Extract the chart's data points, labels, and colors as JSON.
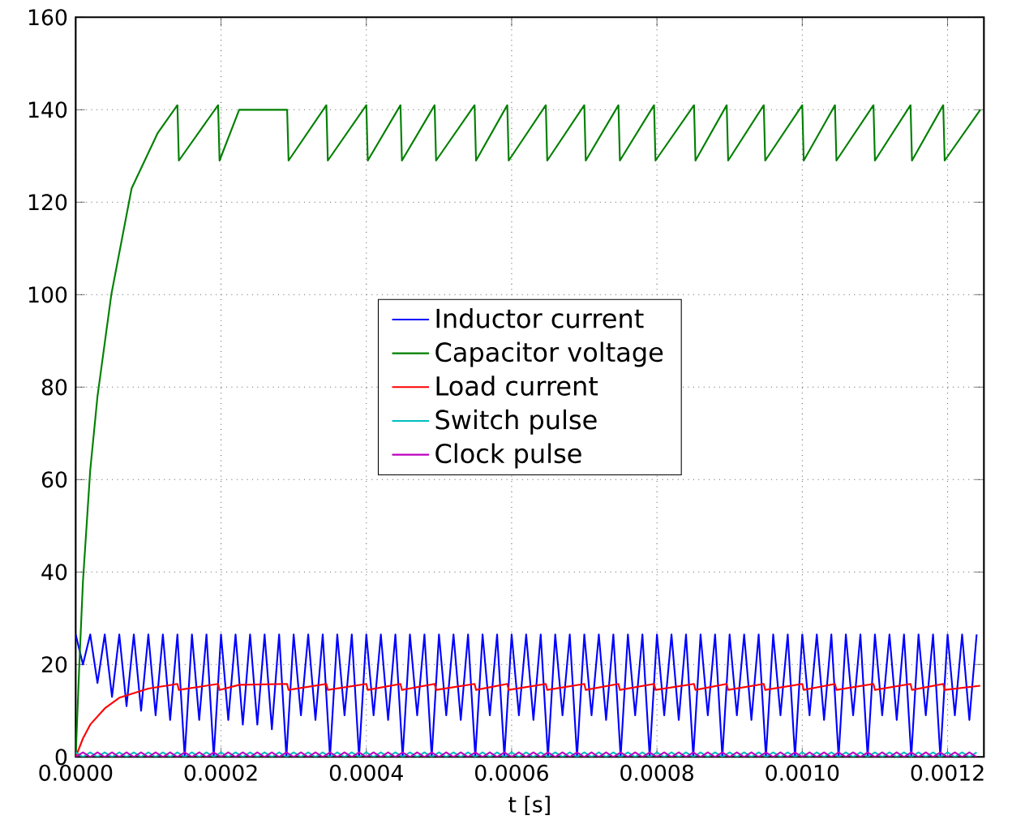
{
  "chart_data": {
    "type": "line",
    "xlabel": "t [s]",
    "xlim": [
      0,
      0.00125
    ],
    "ylim": [
      0,
      160
    ],
    "xticks": [
      {
        "value": 0,
        "label": "0.0000"
      },
      {
        "value": 0.0002,
        "label": "0.0002"
      },
      {
        "value": 0.0004,
        "label": "0.0004"
      },
      {
        "value": 0.0006,
        "label": "0.0006"
      },
      {
        "value": 0.0008,
        "label": "0.0008"
      },
      {
        "value": 0.001,
        "label": "0.0010"
      },
      {
        "value": 0.0012,
        "label": "0.0012"
      }
    ],
    "yticks": [
      0,
      20,
      40,
      60,
      80,
      100,
      120,
      140,
      160
    ],
    "grid": true,
    "legend": "center",
    "marker": "none",
    "line_style": "solid",
    "x": [
      0,
      1e-05,
      2e-05,
      3e-05,
      4e-05,
      5e-05,
      6e-05,
      7e-05,
      8e-05,
      9e-05,
      0.0001,
      0.00011,
      0.00012,
      0.00013,
      0.00014,
      0.00015,
      0.00016,
      0.00017,
      0.00018,
      0.00019,
      0.0002,
      0.00021,
      0.00022,
      0.00023,
      0.00024,
      0.00025,
      0.00026,
      0.00027,
      0.00028,
      0.00029,
      0.0003,
      0.00031,
      0.00032,
      0.00033,
      0.00034,
      0.00035,
      0.00036,
      0.00037,
      0.00038,
      0.00039,
      0.0004,
      0.00041,
      0.00042,
      0.00043,
      0.00044,
      0.00045,
      0.00046,
      0.00047,
      0.00048,
      0.00049,
      0.0005,
      0.00051,
      0.00052,
      0.00053,
      0.00054,
      0.00055,
      0.00056,
      0.00057,
      0.00058,
      0.00059,
      0.0006,
      0.00061,
      0.00062,
      0.00063,
      0.00064,
      0.00065,
      0.00066,
      0.00067,
      0.00068,
      0.00069,
      0.0007,
      0.00071,
      0.00072,
      0.00073,
      0.00074,
      0.00075,
      0.00076,
      0.00077,
      0.00078,
      0.00079,
      0.0008,
      0.00081,
      0.00082,
      0.00083,
      0.00084,
      0.00085,
      0.00086,
      0.00087,
      0.00088,
      0.00089,
      0.0009,
      0.00091,
      0.00092,
      0.00093,
      0.00094,
      0.00095,
      0.00096,
      0.00097,
      0.00098,
      0.00099,
      0.001,
      0.00101,
      0.00102,
      0.00103,
      0.00104,
      0.00105,
      0.00106,
      0.00107,
      0.00108,
      0.00109,
      0.0011,
      0.00111,
      0.00112,
      0.00113,
      0.00114,
      0.00115,
      0.00116,
      0.00117,
      0.00118,
      0.00119,
      0.0012,
      0.00121,
      0.00122,
      0.00123,
      0.00124
    ],
    "series": [
      {
        "name": "Inductor current",
        "color": "#0000ff",
        "values": [
          26.5,
          20,
          26.5,
          16,
          26.5,
          13,
          26.5,
          11,
          26.5,
          10,
          26.5,
          9,
          26.5,
          8,
          26.5,
          0,
          26.5,
          8,
          26.5,
          0,
          26.5,
          8,
          26.5,
          7,
          26.5,
          7,
          26.5,
          6,
          26.5,
          0,
          26.5,
          9,
          26.5,
          8,
          26.5,
          0,
          26.5,
          9,
          26.5,
          0,
          26.5,
          9,
          26.5,
          8,
          26.5,
          0,
          26.5,
          9,
          26.5,
          0,
          26.5,
          9,
          26.5,
          8,
          26.5,
          0,
          26.5,
          9,
          26.5,
          0,
          26.5,
          9,
          26.5,
          8,
          26.5,
          0,
          26.5,
          9,
          26.5,
          0,
          26.5,
          9,
          26.5,
          8,
          26.5,
          0,
          26.5,
          9,
          26.5,
          0,
          26.5,
          9,
          26.5,
          8,
          26.5,
          0,
          26.5,
          9,
          26.5,
          0,
          26.5,
          9,
          26.5,
          8,
          26.5,
          0,
          26.5,
          9,
          26.5,
          0,
          26.5,
          9,
          26.5,
          8,
          26.5,
          0,
          26.5,
          9,
          26.5,
          0,
          26.5,
          9,
          26.5,
          8,
          26.5,
          0,
          26.5,
          9,
          26.5,
          0,
          26.5,
          9,
          26.5,
          8,
          26.5
        ]
      },
      {
        "name": "Capacitor voltage",
        "color": "#008000",
        "x": [
          0,
          5e-06,
          1e-05,
          2e-05,
          3e-05,
          4.9e-05,
          7.7e-05,
          0.000113,
          0.00014,
          0.000142,
          0.000196,
          0.000198,
          0.000225,
          0.000291,
          0.000293,
          0.000345,
          0.000347,
          0.0004,
          0.000402,
          0.000447,
          0.000449,
          0.000494,
          0.000496,
          0.000549,
          0.000551,
          0.000594,
          0.000596,
          0.000647,
          0.000649,
          0.0007,
          0.000702,
          0.000747,
          0.000749,
          0.000796,
          0.000798,
          0.000851,
          0.000853,
          0.000896,
          0.000898,
          0.000947,
          0.000949,
          0.001,
          0.001002,
          0.001045,
          0.001047,
          0.001098,
          0.0011,
          0.001149,
          0.001151,
          0.001194,
          0.001196,
          0.001245
        ],
        "values": [
          0,
          20,
          38,
          62,
          78,
          100,
          123,
          135,
          141,
          129,
          141,
          129,
          140,
          140,
          129,
          141,
          129,
          141,
          129,
          141,
          129,
          141,
          129,
          141,
          129,
          141,
          129,
          141,
          129,
          141,
          129,
          141,
          129,
          141,
          129,
          141,
          129,
          141,
          129,
          141,
          129,
          141,
          129,
          141,
          129,
          141,
          129,
          141,
          129,
          141,
          129,
          140
        ]
      },
      {
        "name": "Load current",
        "color": "#ff0000",
        "x": [
          0,
          1e-05,
          2e-05,
          4e-05,
          6e-05,
          0.0001,
          0.00014,
          0.000142,
          0.000196,
          0.000198,
          0.000225,
          0.000291,
          0.000293,
          0.000345,
          0.000347,
          0.0004,
          0.000402,
          0.000447,
          0.000449,
          0.000494,
          0.000496,
          0.000549,
          0.000551,
          0.000594,
          0.000596,
          0.000647,
          0.000649,
          0.0007,
          0.000702,
          0.000747,
          0.000749,
          0.000796,
          0.000798,
          0.000851,
          0.000853,
          0.000896,
          0.000898,
          0.000947,
          0.000949,
          0.001,
          0.001002,
          0.001045,
          0.001047,
          0.001098,
          0.0011,
          0.001149,
          0.001151,
          0.001194,
          0.001196,
          0.001245
        ],
        "values": [
          0,
          4,
          7,
          10.5,
          12.8,
          14.8,
          15.8,
          14.5,
          15.8,
          14.5,
          15.6,
          15.8,
          14.5,
          15.8,
          14.5,
          15.8,
          14.5,
          15.8,
          14.5,
          15.8,
          14.5,
          15.8,
          14.5,
          15.8,
          14.5,
          15.8,
          14.5,
          15.8,
          14.5,
          15.8,
          14.5,
          15.8,
          14.5,
          15.8,
          14.5,
          15.8,
          14.5,
          15.8,
          14.5,
          15.8,
          14.5,
          15.8,
          14.5,
          15.8,
          14.5,
          15.8,
          14.5,
          15.8,
          14.5,
          15.4
        ]
      },
      {
        "name": "Switch pulse",
        "color": "#00bfbf",
        "values": [
          1,
          0,
          1,
          0,
          1,
          0,
          1,
          0,
          1,
          0,
          1,
          0,
          1,
          0,
          1,
          0,
          1,
          0,
          1,
          0,
          1,
          0,
          1,
          0,
          1,
          0,
          1,
          0,
          1,
          0,
          1,
          0,
          1,
          0,
          1,
          0,
          1,
          0,
          1,
          0,
          1,
          0,
          1,
          0,
          1,
          0,
          1,
          0,
          1,
          0,
          1,
          0,
          1,
          0,
          1,
          0,
          1,
          0,
          1,
          0,
          1,
          0,
          1,
          0,
          1,
          0,
          1,
          0,
          1,
          0,
          1,
          0,
          1,
          0,
          1,
          0,
          1,
          0,
          1,
          0,
          1,
          0,
          1,
          0,
          1,
          0,
          1,
          0,
          1,
          0,
          1,
          0,
          1,
          0,
          1,
          0,
          1,
          0,
          1,
          0,
          1,
          0,
          1,
          0,
          1,
          0,
          1,
          0,
          1,
          0,
          1,
          0,
          1,
          0,
          1,
          0,
          1,
          0,
          1,
          0,
          1,
          0,
          1,
          0,
          1
        ]
      },
      {
        "name": "Clock pulse",
        "color": "#bf00bf",
        "values": [
          0,
          1,
          0,
          1,
          0,
          1,
          0,
          1,
          0,
          1,
          0,
          1,
          0,
          1,
          0,
          1,
          0,
          1,
          0,
          1,
          0,
          1,
          0,
          1,
          0,
          1,
          0,
          1,
          0,
          1,
          0,
          1,
          0,
          1,
          0,
          1,
          0,
          1,
          0,
          1,
          0,
          1,
          0,
          1,
          0,
          1,
          0,
          1,
          0,
          1,
          0,
          1,
          0,
          1,
          0,
          1,
          0,
          1,
          0,
          1,
          0,
          1,
          0,
          1,
          0,
          1,
          0,
          1,
          0,
          1,
          0,
          1,
          0,
          1,
          0,
          1,
          0,
          1,
          0,
          1,
          0,
          1,
          0,
          1,
          0,
          1,
          0,
          1,
          0,
          1,
          0,
          1,
          0,
          1,
          0,
          1,
          0,
          1,
          0,
          1,
          0,
          1,
          0,
          1,
          0,
          1,
          0,
          1,
          0,
          1,
          0,
          1,
          0,
          1,
          0,
          1,
          0,
          1,
          0,
          1,
          0,
          1,
          0,
          1,
          0
        ]
      }
    ]
  }
}
